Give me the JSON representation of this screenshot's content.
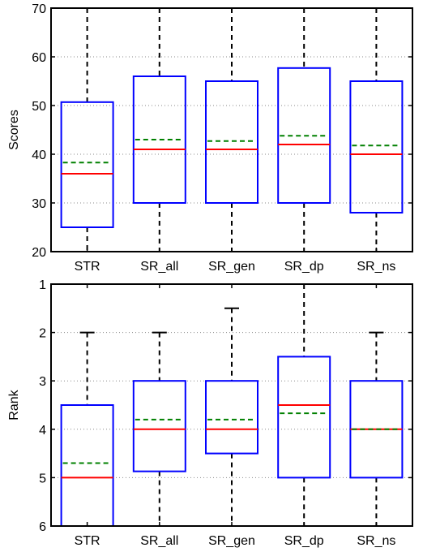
{
  "chart_data": [
    {
      "type": "box",
      "ylabel": "Scores",
      "ylim": [
        20,
        70
      ],
      "yticks": [
        20,
        30,
        40,
        50,
        60,
        70
      ],
      "y_reversed": false,
      "grid": "dotted",
      "categories": [
        "STR",
        "SR_all",
        "SR_gen",
        "SR_dp",
        "SR_ns"
      ],
      "boxes": [
        {
          "whisker_low": 20,
          "q1": 25,
          "median": 36,
          "mean": 38.3,
          "q3": 50.7,
          "whisker_high": 70
        },
        {
          "whisker_low": 20,
          "q1": 30,
          "median": 41,
          "mean": 43,
          "q3": 56,
          "whisker_high": 70
        },
        {
          "whisker_low": 20,
          "q1": 30,
          "median": 41,
          "mean": 42.7,
          "q3": 55,
          "whisker_high": 70
        },
        {
          "whisker_low": 20,
          "q1": 30,
          "median": 42,
          "mean": 43.8,
          "q3": 57.7,
          "whisker_high": 70
        },
        {
          "whisker_low": 20,
          "q1": 28,
          "median": 40,
          "mean": 41.8,
          "q3": 55,
          "whisker_high": 70
        }
      ],
      "colors": {
        "box": "#0000ff",
        "median": "#ff0000",
        "mean": "#008000",
        "whisker": "#000000"
      }
    },
    {
      "type": "box",
      "ylabel": "Rank",
      "ylim": [
        1,
        6
      ],
      "yticks": [
        1,
        2,
        3,
        4,
        5,
        6
      ],
      "y_reversed": true,
      "grid": "dotted",
      "categories": [
        "STR",
        "SR_all",
        "SR_gen",
        "SR_dp",
        "SR_ns"
      ],
      "boxes": [
        {
          "whisker_low": 2,
          "q1": 3.5,
          "median": 5,
          "mean": 4.7,
          "q3": 6,
          "whisker_high": 6
        },
        {
          "whisker_low": 2,
          "q1": 3,
          "median": 4,
          "mean": 3.8,
          "q3": 4.87,
          "whisker_high": 6
        },
        {
          "whisker_low": 1.5,
          "q1": 3,
          "median": 4,
          "mean": 3.8,
          "q3": 4.5,
          "whisker_high": 6
        },
        {
          "whisker_low": 1,
          "q1": 2.5,
          "median": 3.5,
          "mean": 3.67,
          "q3": 5,
          "whisker_high": 6
        },
        {
          "whisker_low": 2,
          "q1": 3,
          "median": 4,
          "mean": 4,
          "q3": 5,
          "whisker_high": 6
        }
      ],
      "colors": {
        "box": "#0000ff",
        "median": "#ff0000",
        "mean": "#008000",
        "whisker": "#000000"
      }
    }
  ]
}
